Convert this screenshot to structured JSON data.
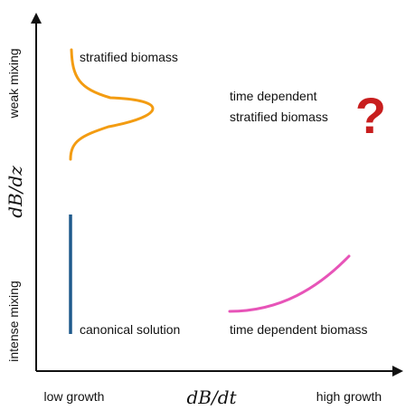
{
  "axes": {
    "x_label": "dB/dt",
    "y_label": "dB/dz",
    "x_low": "low growth",
    "x_high": "high growth",
    "y_low": "intense mixing",
    "y_high": "weak mixing"
  },
  "regions": {
    "stratified": {
      "label": "stratified biomass",
      "color": "#F39C12"
    },
    "canonical": {
      "label": "canonical solution",
      "color": "#1F5A8C"
    },
    "time_dependent": {
      "label": "time dependent biomass",
      "color": "#E754B8"
    },
    "unknown": {
      "label_line1": "time dependent",
      "label_line2": "stratified biomass",
      "mark": "?",
      "color": "#C81E1E"
    }
  }
}
